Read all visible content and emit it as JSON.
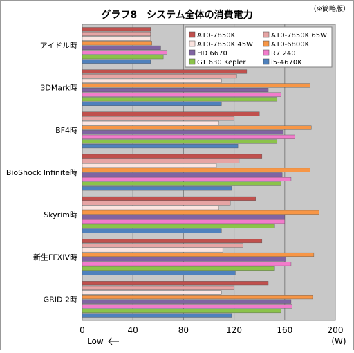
{
  "chart_data": {
    "type": "bar",
    "orientation": "horizontal",
    "title": "グラフ8　システム全体の消費電力",
    "subtitle": "（※簡略版）",
    "xunit": "(W)",
    "xlim": [
      0,
      200
    ],
    "xticks": [
      "0",
      "40",
      "80",
      "120",
      "160",
      "200"
    ],
    "annotation": "Low",
    "grid": true,
    "legend_position": "top-right",
    "categories": [
      "アイドル時",
      "3DMark時",
      "BF4時",
      "BioShock Infinite時",
      "Skyrim時",
      "新生FFXIV時",
      "GRID 2時"
    ],
    "series": [
      {
        "name": "A10-7850K",
        "color": "#c0504d",
        "values": [
          54,
          130,
          140,
          142,
          137,
          142,
          147
        ]
      },
      {
        "name": "A10-7850K 65W",
        "color": "#e6a4a4",
        "values": [
          54,
          122,
          120,
          124,
          117,
          127,
          120
        ]
      },
      {
        "name": "A10-7850K 45W",
        "color": "#fbe4e0",
        "values": [
          54,
          110,
          108,
          106,
          108,
          111,
          110
        ]
      },
      {
        "name": "A10-6800K",
        "color": "#f79646",
        "values": [
          55,
          180,
          181,
          180,
          187,
          183,
          182
        ]
      },
      {
        "name": "HD 6670",
        "color": "#8064a2",
        "values": [
          62,
          147,
          159,
          158,
          160,
          161,
          165
        ]
      },
      {
        "name": "R7 240",
        "color": "#f27ccb",
        "values": [
          67,
          157,
          168,
          165,
          160,
          165,
          166
        ]
      },
      {
        "name": "GT 630 Kepler",
        "color": "#8bc34a",
        "values": [
          64,
          154,
          154,
          157,
          152,
          152,
          157
        ]
      },
      {
        "name": "i5-4670K",
        "color": "#4f81bd",
        "values": [
          54,
          110,
          123,
          118,
          110,
          121,
          118
        ]
      }
    ]
  }
}
